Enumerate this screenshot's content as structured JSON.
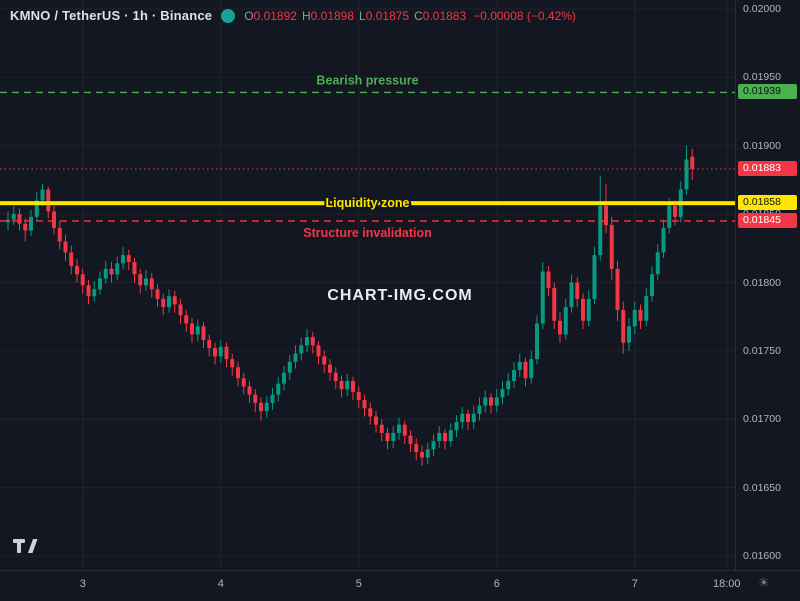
{
  "header": {
    "title": "KMNO / TetherUS · 1h · Binance",
    "ohlc": {
      "open_label": "O",
      "open": "0.01892",
      "high_label": "H",
      "high": "0.01898",
      "low_label": "L",
      "low": "0.01875",
      "close_label": "C",
      "close": "0.01883",
      "change": "−0.00008 (−0.42%)"
    }
  },
  "watermark": "CHART-IMG.COM",
  "icons": {
    "sun_icon": "☀"
  },
  "colors": {
    "background": "#131722",
    "up": "#089981",
    "down": "#f23645",
    "grid": "#1e222d",
    "axis_text": "#b2b5be",
    "green_level": "#4caf50",
    "yellow_level": "#ffe600",
    "red_level": "#f23645"
  },
  "chart_data": {
    "type": "candlestick",
    "symbol": "KMNO / TetherUS",
    "interval": "1h",
    "exchange": "Binance",
    "price_range": {
      "min": 0.016,
      "max": 0.02
    },
    "y_axis_ticks": [
      "0.02000",
      "0.01950",
      "0.01900",
      "0.01850",
      "0.01800",
      "0.01750",
      "0.01700",
      "0.01650",
      "0.01600"
    ],
    "x_axis_ticks": [
      {
        "label": "3",
        "index": 13
      },
      {
        "label": "4",
        "index": 37
      },
      {
        "label": "5",
        "index": 61
      },
      {
        "label": "6",
        "index": 85
      },
      {
        "label": "7",
        "index": 109
      },
      {
        "label": "18:00",
        "index": 125
      }
    ],
    "levels": [
      {
        "name": "bearish-pressure",
        "label": "Bearish pressure",
        "price": 0.01939,
        "badge": "0.01939",
        "style": "dashed",
        "color": "#4caf50",
        "badge_text": "#10141c",
        "label_position": "above"
      },
      {
        "name": "last-price",
        "label": "",
        "price": 0.01883,
        "badge": "0.01883",
        "style": "dotted",
        "color": "#f23645",
        "badge_text": "#ffffff",
        "label_position": "none"
      },
      {
        "name": "liquidity-zone",
        "label": "Liquidity zone",
        "price": 0.01858,
        "badge": "0.01858",
        "style": "thick",
        "color": "#ffe600",
        "badge_text": "#10141c",
        "label_position": "on"
      },
      {
        "name": "structure-invalidation",
        "label": "Structure invalidation",
        "price": 0.01845,
        "badge": "0.01845",
        "style": "dashed",
        "color": "#f23645",
        "badge_text": "#ffffff",
        "label_position": "below"
      }
    ],
    "candles": [
      [
        0.01844,
        0.01852,
        0.01838,
        0.01846
      ],
      [
        0.01846,
        0.01856,
        0.01842,
        0.0185
      ],
      [
        0.0185,
        0.01854,
        0.01838,
        0.01843
      ],
      [
        0.01843,
        0.01847,
        0.0183,
        0.01838
      ],
      [
        0.01838,
        0.01853,
        0.01834,
        0.01848
      ],
      [
        0.01848,
        0.01866,
        0.01845,
        0.0186
      ],
      [
        0.0186,
        0.01872,
        0.01856,
        0.01868
      ],
      [
        0.01868,
        0.0187,
        0.01847,
        0.01852
      ],
      [
        0.01852,
        0.01856,
        0.01835,
        0.0184
      ],
      [
        0.0184,
        0.01845,
        0.01824,
        0.0183
      ],
      [
        0.0183,
        0.01835,
        0.01816,
        0.01822
      ],
      [
        0.01822,
        0.01827,
        0.01806,
        0.01812
      ],
      [
        0.01812,
        0.01817,
        0.018,
        0.01806
      ],
      [
        0.01806,
        0.0181,
        0.01792,
        0.01798
      ],
      [
        0.01798,
        0.01802,
        0.01784,
        0.0179
      ],
      [
        0.0179,
        0.01801,
        0.01786,
        0.01795
      ],
      [
        0.01795,
        0.01808,
        0.01791,
        0.01803
      ],
      [
        0.01803,
        0.01816,
        0.01799,
        0.0181
      ],
      [
        0.0181,
        0.01815,
        0.018,
        0.01806
      ],
      [
        0.01806,
        0.01819,
        0.01802,
        0.01814
      ],
      [
        0.01814,
        0.01826,
        0.0181,
        0.0182
      ],
      [
        0.0182,
        0.01824,
        0.01809,
        0.01815
      ],
      [
        0.01815,
        0.01818,
        0.018,
        0.01806
      ],
      [
        0.01806,
        0.0181,
        0.01792,
        0.01798
      ],
      [
        0.01798,
        0.01809,
        0.01794,
        0.01803
      ],
      [
        0.01803,
        0.01807,
        0.01789,
        0.01795
      ],
      [
        0.01795,
        0.01799,
        0.01782,
        0.01788
      ],
      [
        0.01788,
        0.01792,
        0.01776,
        0.01782
      ],
      [
        0.01782,
        0.01795,
        0.01778,
        0.0179
      ],
      [
        0.0179,
        0.01794,
        0.01778,
        0.01784
      ],
      [
        0.01784,
        0.01788,
        0.0177,
        0.01776
      ],
      [
        0.01776,
        0.0178,
        0.01764,
        0.0177
      ],
      [
        0.0177,
        0.01774,
        0.01756,
        0.01762
      ],
      [
        0.01762,
        0.01773,
        0.01757,
        0.01768
      ],
      [
        0.01768,
        0.01771,
        0.01752,
        0.01758
      ],
      [
        0.01758,
        0.01762,
        0.01746,
        0.01752
      ],
      [
        0.01752,
        0.01756,
        0.0174,
        0.01746
      ],
      [
        0.01746,
        0.01758,
        0.01741,
        0.01753
      ],
      [
        0.01753,
        0.01756,
        0.01738,
        0.01744
      ],
      [
        0.01744,
        0.01748,
        0.01732,
        0.01738
      ],
      [
        0.01738,
        0.01742,
        0.01724,
        0.0173
      ],
      [
        0.0173,
        0.01734,
        0.01718,
        0.01724
      ],
      [
        0.01724,
        0.01728,
        0.01712,
        0.01718
      ],
      [
        0.01718,
        0.01722,
        0.01705,
        0.01712
      ],
      [
        0.01712,
        0.01716,
        0.01699,
        0.01706
      ],
      [
        0.01706,
        0.01717,
        0.01701,
        0.01712
      ],
      [
        0.01712,
        0.01723,
        0.01707,
        0.01718
      ],
      [
        0.01718,
        0.01731,
        0.01713,
        0.01726
      ],
      [
        0.01726,
        0.01739,
        0.01721,
        0.01734
      ],
      [
        0.01734,
        0.01747,
        0.01729,
        0.01742
      ],
      [
        0.01742,
        0.01754,
        0.01737,
        0.01748
      ],
      [
        0.01748,
        0.0176,
        0.01743,
        0.01754
      ],
      [
        0.01754,
        0.01766,
        0.01749,
        0.0176
      ],
      [
        0.0176,
        0.01764,
        0.01748,
        0.01754
      ],
      [
        0.01754,
        0.01757,
        0.0174,
        0.01746
      ],
      [
        0.01746,
        0.0175,
        0.01734,
        0.0174
      ],
      [
        0.0174,
        0.01744,
        0.01728,
        0.01734
      ],
      [
        0.01734,
        0.01738,
        0.01722,
        0.01728
      ],
      [
        0.01728,
        0.01732,
        0.01716,
        0.01722
      ],
      [
        0.01722,
        0.01733,
        0.01717,
        0.01728
      ],
      [
        0.01728,
        0.01731,
        0.01714,
        0.0172
      ],
      [
        0.0172,
        0.01724,
        0.01708,
        0.01714
      ],
      [
        0.01714,
        0.01718,
        0.01702,
        0.01708
      ],
      [
        0.01708,
        0.01712,
        0.01696,
        0.01702
      ],
      [
        0.01702,
        0.01706,
        0.0169,
        0.01696
      ],
      [
        0.01696,
        0.017,
        0.01684,
        0.0169
      ],
      [
        0.0169,
        0.01694,
        0.01678,
        0.01684
      ],
      [
        0.01684,
        0.01695,
        0.01679,
        0.0169
      ],
      [
        0.0169,
        0.01701,
        0.01685,
        0.01696
      ],
      [
        0.01696,
        0.01699,
        0.01682,
        0.01688
      ],
      [
        0.01688,
        0.01692,
        0.01676,
        0.01682
      ],
      [
        0.01682,
        0.01686,
        0.0167,
        0.01676
      ],
      [
        0.01676,
        0.01681,
        0.01666,
        0.01672
      ],
      [
        0.01672,
        0.01683,
        0.01667,
        0.01678
      ],
      [
        0.01678,
        0.01689,
        0.01673,
        0.01684
      ],
      [
        0.01684,
        0.01695,
        0.01679,
        0.0169
      ],
      [
        0.0169,
        0.01693,
        0.01678,
        0.01684
      ],
      [
        0.01684,
        0.01697,
        0.0168,
        0.01692
      ],
      [
        0.01692,
        0.01703,
        0.01687,
        0.01698
      ],
      [
        0.01698,
        0.01709,
        0.01693,
        0.01704
      ],
      [
        0.01704,
        0.01707,
        0.01692,
        0.01698
      ],
      [
        0.01698,
        0.0171,
        0.01693,
        0.01704
      ],
      [
        0.01704,
        0.01716,
        0.01699,
        0.0171
      ],
      [
        0.0171,
        0.01721,
        0.01705,
        0.01716
      ],
      [
        0.01716,
        0.01719,
        0.01704,
        0.0171
      ],
      [
        0.0171,
        0.01722,
        0.01705,
        0.01716
      ],
      [
        0.01716,
        0.01728,
        0.01711,
        0.01722
      ],
      [
        0.01722,
        0.01734,
        0.01717,
        0.01728
      ],
      [
        0.01728,
        0.01742,
        0.01723,
        0.01736
      ],
      [
        0.01736,
        0.01748,
        0.01731,
        0.01742
      ],
      [
        0.01742,
        0.01745,
        0.01724,
        0.0173
      ],
      [
        0.0173,
        0.0175,
        0.01726,
        0.01744
      ],
      [
        0.01744,
        0.01776,
        0.0174,
        0.0177
      ],
      [
        0.0177,
        0.01815,
        0.01766,
        0.01808
      ],
      [
        0.01808,
        0.01812,
        0.0179,
        0.01796
      ],
      [
        0.01796,
        0.018,
        0.01766,
        0.01772
      ],
      [
        0.01772,
        0.01778,
        0.01756,
        0.01762
      ],
      [
        0.01762,
        0.01788,
        0.01758,
        0.01782
      ],
      [
        0.01782,
        0.01806,
        0.01778,
        0.018
      ],
      [
        0.018,
        0.01804,
        0.01782,
        0.01788
      ],
      [
        0.01788,
        0.01792,
        0.01766,
        0.01772
      ],
      [
        0.01772,
        0.01794,
        0.01768,
        0.01788
      ],
      [
        0.01788,
        0.01826,
        0.01784,
        0.0182
      ],
      [
        0.0182,
        0.01878,
        0.01816,
        0.01856
      ],
      [
        0.01856,
        0.01872,
        0.01836,
        0.01842
      ],
      [
        0.01842,
        0.01848,
        0.01802,
        0.0181
      ],
      [
        0.0181,
        0.01816,
        0.01772,
        0.0178
      ],
      [
        0.0178,
        0.01786,
        0.01748,
        0.01756
      ],
      [
        0.01756,
        0.01774,
        0.0175,
        0.01768
      ],
      [
        0.01768,
        0.01786,
        0.01762,
        0.0178
      ],
      [
        0.0178,
        0.01784,
        0.01766,
        0.01772
      ],
      [
        0.01772,
        0.01796,
        0.01768,
        0.0179
      ],
      [
        0.0179,
        0.01812,
        0.01786,
        0.01806
      ],
      [
        0.01806,
        0.01828,
        0.01802,
        0.01822
      ],
      [
        0.01822,
        0.01846,
        0.01818,
        0.0184
      ],
      [
        0.0184,
        0.01862,
        0.01836,
        0.01856
      ],
      [
        0.01856,
        0.0186,
        0.01842,
        0.01848
      ],
      [
        0.01848,
        0.01874,
        0.01844,
        0.01868
      ],
      [
        0.01868,
        0.019,
        0.01864,
        0.0189
      ],
      [
        0.01892,
        0.01898,
        0.01875,
        0.01883
      ]
    ]
  }
}
